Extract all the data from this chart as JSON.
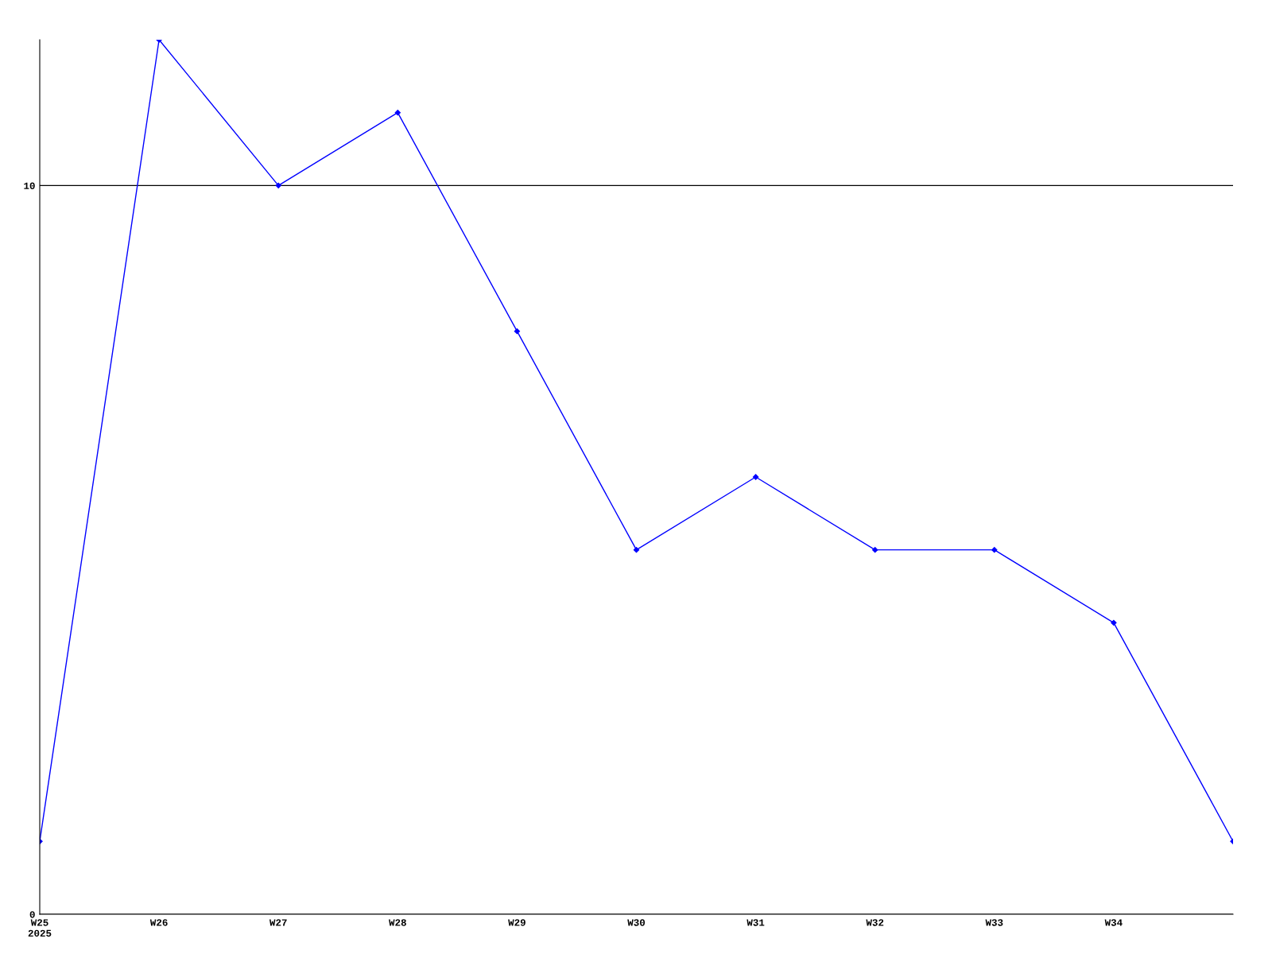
{
  "chart_data": {
    "type": "line",
    "categories": [
      "W25\n2025",
      "W26",
      "W27",
      "W28",
      "W29",
      "W30",
      "W31",
      "W32",
      "W33",
      "W34",
      null
    ],
    "series": [
      {
        "color": "#0000ff",
        "values": [
          1,
          12,
          10,
          11,
          8,
          5,
          6,
          5,
          5,
          4,
          1
        ]
      }
    ],
    "ylim": [
      0,
      12
    ],
    "yticks": [
      0,
      10
    ],
    "grid": "y",
    "marker": "diamond",
    "line_style": "solid",
    "legend": false
  }
}
